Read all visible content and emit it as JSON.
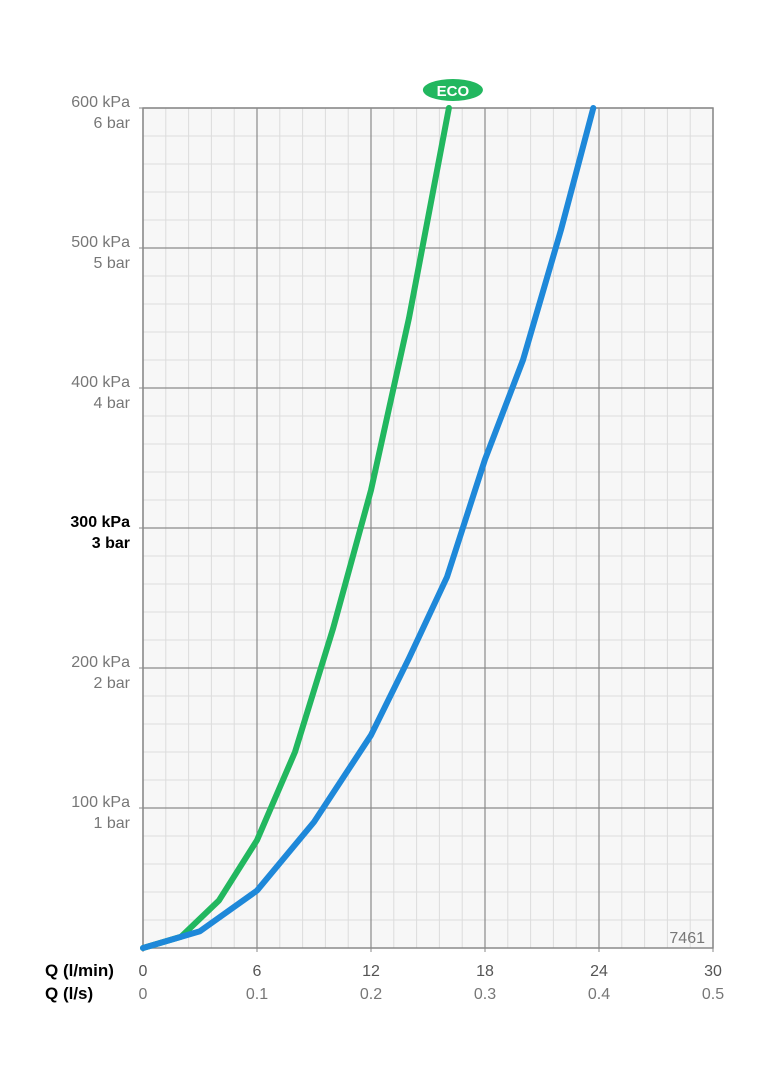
{
  "chart_data": {
    "type": "line",
    "xlabel": "Q (l/min)",
    "x2label": "Q (l/s)",
    "xlim": [
      0,
      30
    ],
    "xticks": [
      0,
      6,
      12,
      18,
      24,
      30
    ],
    "x2lim": [
      0,
      0.5
    ],
    "x2ticks": [
      0,
      0.1,
      0.2,
      0.3,
      0.4,
      0.5
    ],
    "ylim": [
      0,
      600
    ],
    "yticks": [
      {
        "value": 100,
        "label": "100 kPa"
      },
      {
        "value": 200,
        "label": "200 kPa"
      },
      {
        "value": 300,
        "label": "300 kPa"
      },
      {
        "value": 400,
        "label": "400 kPa"
      },
      {
        "value": 500,
        "label": "500 kPa"
      },
      {
        "value": 600,
        "label": "600 kPa"
      }
    ],
    "y2lim": [
      0,
      6
    ],
    "y2ticks": [
      {
        "value": 1,
        "label": "1 bar"
      },
      {
        "value": 2,
        "label": "2 bar"
      },
      {
        "value": 3,
        "label": "3 bar"
      },
      {
        "value": 4,
        "label": "4 bar"
      },
      {
        "value": 5,
        "label": "5 bar"
      },
      {
        "value": 6,
        "label": "6 bar"
      }
    ],
    "highlight_ytick": 300,
    "grid": true,
    "annotation": "7461",
    "series": [
      {
        "name": "ECO",
        "color": "#22b75f",
        "x": [
          0,
          2,
          4,
          6,
          8,
          10,
          12,
          14,
          16.1
        ],
        "values": [
          0,
          8,
          34,
          77,
          140,
          228,
          327,
          450,
          600
        ]
      },
      {
        "color": "#1e88d9",
        "x": [
          0,
          3,
          6,
          9,
          12,
          14,
          16,
          18,
          20,
          22,
          23.7
        ],
        "values": [
          0,
          12,
          41,
          90,
          152,
          207,
          265,
          349,
          420,
          513,
          600
        ]
      }
    ]
  }
}
